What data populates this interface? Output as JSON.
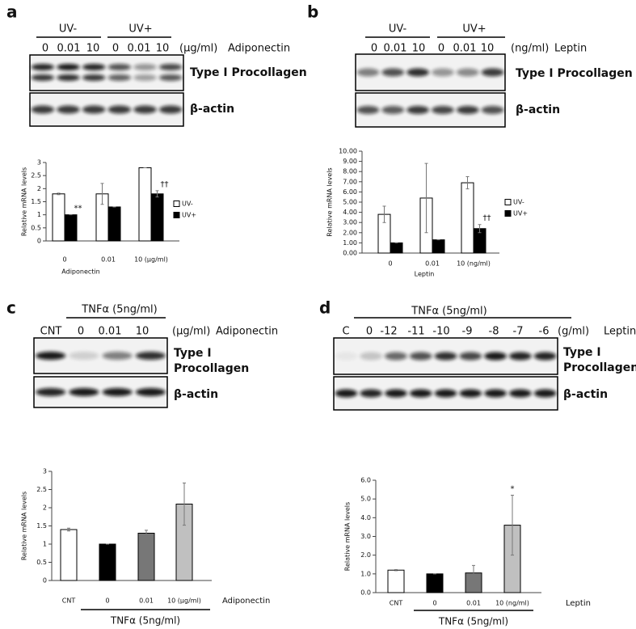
{
  "blots": [
    {
      "label": "a",
      "groups": [
        "UV-",
        "UV+"
      ],
      "lanes": [
        "0",
        "0.01",
        "10",
        "0",
        "0.01",
        "10"
      ],
      "unit": "(μg/ml)",
      "agent": "Adiponectin",
      "bands": [
        "Type I Procollagen",
        "β-actin"
      ]
    },
    {
      "label": "b",
      "groups": [
        "UV-",
        "UV+"
      ],
      "lanes": [
        "0",
        "0.01",
        "10",
        "0",
        "0.01",
        "10"
      ],
      "unit": "(ng/ml)",
      "agent": "Leptin",
      "bands": [
        "Type I Procollagen",
        "β-actin"
      ]
    },
    {
      "label": "c",
      "groups": [
        "TNFα (5ng/ml)"
      ],
      "lanes": [
        "CNT",
        "0",
        "0.01",
        "10"
      ],
      "unit": "(μg/ml)",
      "agent": "Adiponectin",
      "bands": [
        "Type I",
        "Procollagen",
        "β-actin"
      ]
    },
    {
      "label": "d",
      "groups": [
        "TNFα (5ng/ml)"
      ],
      "lanes": [
        "C",
        "0",
        "-12",
        "-11",
        "-10",
        "-9",
        "-8",
        "-7",
        "-6"
      ],
      "unit": "(g/ml)",
      "agent": "Leptin",
      "bands": [
        "Type I",
        "Procollagen",
        "β-actin"
      ]
    }
  ],
  "chart_data": [
    {
      "type": "bar",
      "y_label": "Relative mRNA levels",
      "x_label": "Adiponectin",
      "categories": [
        "0",
        "0.01",
        "10 (μg/ml)"
      ],
      "series": [
        {
          "name": "UV-",
          "color": "#ffffff",
          "values": [
            1.8,
            1.8,
            2.8
          ],
          "errors": [
            0.03,
            0.4,
            0
          ]
        },
        {
          "name": "UV+",
          "color": "#000000",
          "values": [
            1.0,
            1.3,
            1.8
          ],
          "errors": [
            0,
            0,
            0.12
          ],
          "annotations": [
            "**",
            null,
            "††"
          ]
        }
      ],
      "ylim": [
        0,
        3
      ],
      "yticks": [
        0,
        0.5,
        1,
        1.5,
        2,
        2.5,
        3
      ]
    },
    {
      "type": "bar",
      "y_label": "Relative mRNA levels",
      "x_label": "Leptin",
      "categories": [
        "0",
        "0.01",
        "10 (ng/ml)"
      ],
      "series": [
        {
          "name": "UV-",
          "color": "#ffffff",
          "values": [
            3.8,
            5.4,
            6.9
          ],
          "errors": [
            0.8,
            3.4,
            0.6
          ]
        },
        {
          "name": "UV+",
          "color": "#000000",
          "values": [
            1.0,
            1.3,
            2.4
          ],
          "errors": [
            0,
            0,
            0.4
          ],
          "annotations": [
            null,
            null,
            "††"
          ]
        }
      ],
      "ylim": [
        0,
        10
      ],
      "yticks": [
        {
          "value": 0,
          "label": "0.00"
        },
        {
          "value": 1,
          "label": "1.00"
        },
        {
          "value": 2,
          "label": "2.00"
        },
        {
          "value": 3,
          "label": "3.00"
        },
        {
          "value": 4,
          "label": "4.00"
        },
        {
          "value": 5,
          "label": "5.00"
        },
        {
          "value": 6,
          "label": "6.00"
        },
        {
          "value": 7,
          "label": "7.00"
        },
        {
          "value": 8,
          "label": "8.00"
        },
        {
          "value": 9,
          "label": "9.00"
        },
        {
          "value": 10,
          "label": "10.00"
        }
      ]
    },
    {
      "type": "bar",
      "y_label": "Relative mRNA levels",
      "x_label": "Adiponectin",
      "group_label": "TNFα (5ng/ml)",
      "categories": [
        "CNT",
        "0",
        "0.01",
        "10 (μg/ml)"
      ],
      "values": [
        1.4,
        1.0,
        1.3,
        2.1
      ],
      "errors": [
        0.04,
        0,
        0.08,
        0.58
      ],
      "colors": [
        "#ffffff",
        "#000000",
        "#777777",
        "#c0c0c0"
      ],
      "ylim": [
        0,
        3
      ],
      "yticks": [
        0,
        0.5,
        1,
        1.5,
        2,
        2.5,
        3
      ]
    },
    {
      "type": "bar",
      "y_label": "Relative mRNA levels",
      "x_label": "Leptin",
      "group_label": "TNFα (5ng/ml)",
      "categories": [
        "CNT",
        "0",
        "0.01",
        "10 (ng/ml)"
      ],
      "values": [
        1.2,
        1.0,
        1.05,
        3.6
      ],
      "errors": [
        0.03,
        0,
        0.4,
        1.6
      ],
      "annotations": [
        null,
        null,
        null,
        "*"
      ],
      "colors": [
        "#ffffff",
        "#000000",
        "#777777",
        "#c0c0c0"
      ],
      "ylim": [
        0,
        6
      ],
      "yticks": [
        {
          "value": 0,
          "label": "0.0"
        },
        {
          "value": 1,
          "label": "1.0"
        },
        {
          "value": 2,
          "label": "2.0"
        },
        {
          "value": 3,
          "label": "3.0"
        },
        {
          "value": 4,
          "label": "4.0"
        },
        {
          "value": 5,
          "label": "5.0"
        },
        {
          "value": 6,
          "label": "6.0"
        }
      ]
    }
  ]
}
